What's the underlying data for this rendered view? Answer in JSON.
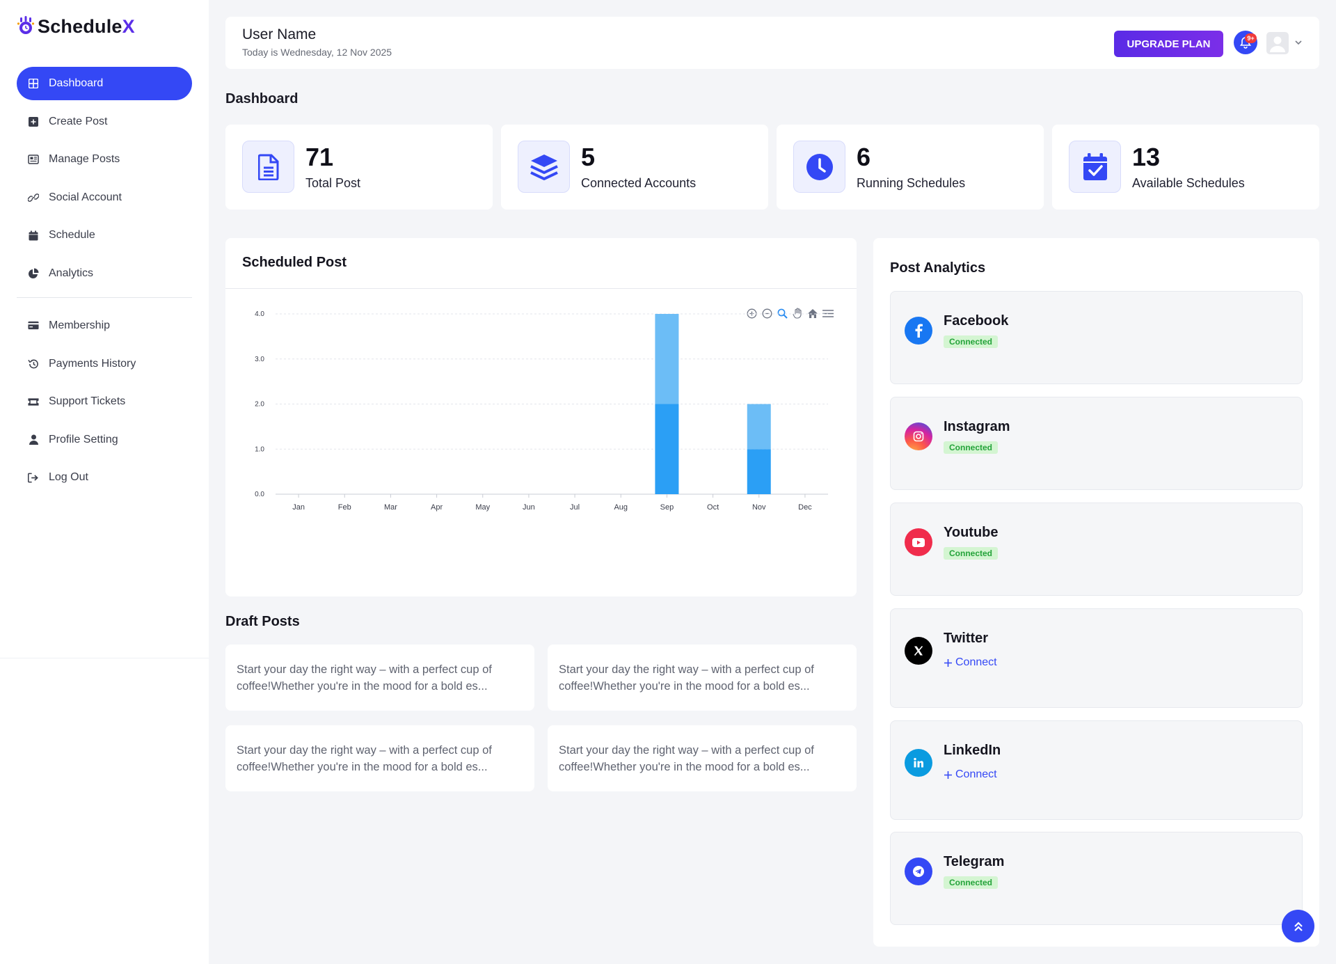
{
  "app": {
    "brand_prefix": "Schedule",
    "brand_suffix": "X"
  },
  "sidebar": {
    "items": [
      {
        "label": "Dashboard",
        "icon": "dashboard-icon",
        "active": true
      },
      {
        "label": "Create Post",
        "icon": "plus-square-icon"
      },
      {
        "label": "Manage Posts",
        "icon": "newspaper-icon"
      },
      {
        "label": "Social Account",
        "icon": "link-icon"
      },
      {
        "label": "Schedule",
        "icon": "calendar-icon"
      },
      {
        "label": "Analytics",
        "icon": "pie-chart-icon"
      }
    ],
    "items2": [
      {
        "label": "Membership",
        "icon": "credit-card-icon"
      },
      {
        "label": "Payments History",
        "icon": "history-icon"
      },
      {
        "label": "Support Tickets",
        "icon": "ticket-icon"
      },
      {
        "label": "Profile Setting",
        "icon": "user-icon"
      },
      {
        "label": "Log Out",
        "icon": "logout-icon"
      }
    ]
  },
  "header": {
    "user_name": "User Name",
    "date_text": "Today is Wednesday, 12 Nov 2025",
    "upgrade_label": "UPGRADE PLAN",
    "notification_badge": "9+"
  },
  "page": {
    "title": "Dashboard"
  },
  "stats": [
    {
      "value": "71",
      "label": "Total Post",
      "icon": "document-icon"
    },
    {
      "value": "5",
      "label": "Connected Accounts",
      "icon": "layers-icon"
    },
    {
      "value": "6",
      "label": "Running Schedules",
      "icon": "clock-icon"
    },
    {
      "value": "13",
      "label": "Available Schedules",
      "icon": "calendar-check-icon"
    }
  ],
  "scheduled": {
    "title": "Scheduled Post"
  },
  "chart_data": {
    "type": "bar",
    "stacked": true,
    "categories": [
      "Jan",
      "Feb",
      "Mar",
      "Apr",
      "May",
      "Jun",
      "Jul",
      "Aug",
      "Sep",
      "Oct",
      "Nov",
      "Dec"
    ],
    "series": [
      {
        "values": [
          0,
          0,
          0,
          0,
          0,
          0,
          0,
          0,
          2,
          0,
          1,
          0
        ],
        "color": "#2b9ff5"
      },
      {
        "values": [
          0,
          0,
          0,
          0,
          0,
          0,
          0,
          0,
          2,
          0,
          1,
          0
        ],
        "color": "#6cbdf6"
      }
    ],
    "y_ticks": [
      "0.0",
      "1.0",
      "2.0",
      "3.0",
      "4.0"
    ],
    "ylim": [
      0,
      4
    ],
    "grid": true
  },
  "drafts": {
    "title": "Draft Posts",
    "items": [
      "Start your day the right way – with a perfect cup of coffee!Whether you're in the mood for a bold es...",
      "Start your day the right way – with a perfect cup of coffee!Whether you're in the mood for a bold es...",
      "Start your day the right way – with a perfect cup of coffee!Whether you're in the mood for a bold es...",
      "Start your day the right way – with a perfect cup of coffee!Whether you're in the mood for a bold es..."
    ]
  },
  "analytics": {
    "title": "Post Analytics",
    "accounts": [
      {
        "name": "Facebook",
        "status": "Connected",
        "connected": true,
        "icon": "facebook-icon",
        "color": "#1877f2"
      },
      {
        "name": "Instagram",
        "status": "Connected",
        "connected": true,
        "icon": "instagram-icon",
        "color": "#e1306c"
      },
      {
        "name": "Youtube",
        "status": "Connected",
        "connected": true,
        "icon": "youtube-icon",
        "color": "#f02c4c"
      },
      {
        "name": "Twitter",
        "status": "Connect",
        "connected": false,
        "icon": "x-icon",
        "color": "#000000"
      },
      {
        "name": "LinkedIn",
        "status": "Connect",
        "connected": false,
        "icon": "linkedin-icon",
        "color": "#0a9be0"
      },
      {
        "name": "Telegram",
        "status": "Connected",
        "connected": true,
        "icon": "telegram-icon",
        "color": "#3448f5"
      }
    ]
  },
  "colors": {
    "accent": "#3448f5",
    "upgrade": "#6a2ce8",
    "connected_bg": "#d4f5d2",
    "connected_text": "#24a33a"
  }
}
